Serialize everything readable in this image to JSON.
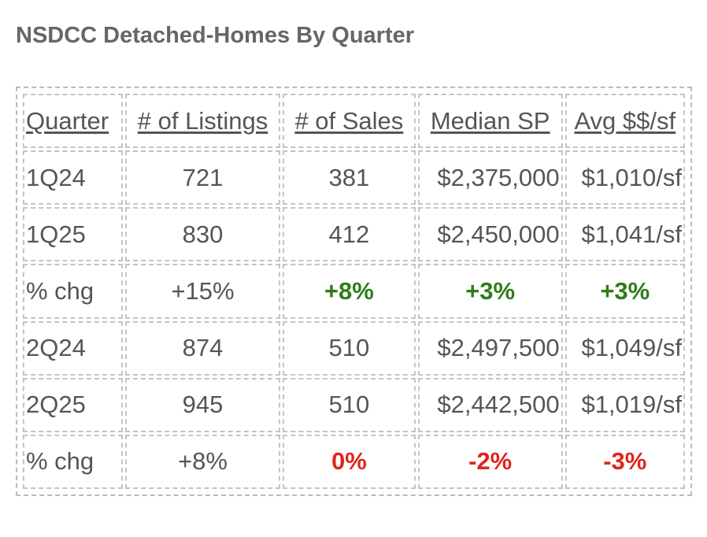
{
  "title": "NSDCC Detached-Homes By Quarter",
  "colors": {
    "positive": "#2e7d1a",
    "negative": "#e0241b",
    "text": "#555555",
    "border": "#c4c4c4"
  },
  "table": {
    "headers": [
      "Quarter",
      "# of Listings",
      "# of Sales",
      "Median SP",
      "Avg $$/sf"
    ],
    "rows": [
      [
        "1Q24",
        "721",
        "381",
        "$2,375,000",
        "$1,010/sf"
      ],
      [
        "1Q25",
        "830",
        "412",
        "$2,450,000",
        "$1,041/sf"
      ],
      [
        "% chg",
        "+15%",
        "+8%",
        "+3%",
        "+3%"
      ],
      [
        "2Q24",
        "874",
        "510",
        "$2,497,500",
        "$1,049/sf"
      ],
      [
        "2Q25",
        "945",
        "510",
        "$2,442,500",
        "$1,019/sf"
      ],
      [
        "% chg",
        "+8%",
        "0%",
        "-2%",
        "-3%"
      ]
    ]
  }
}
